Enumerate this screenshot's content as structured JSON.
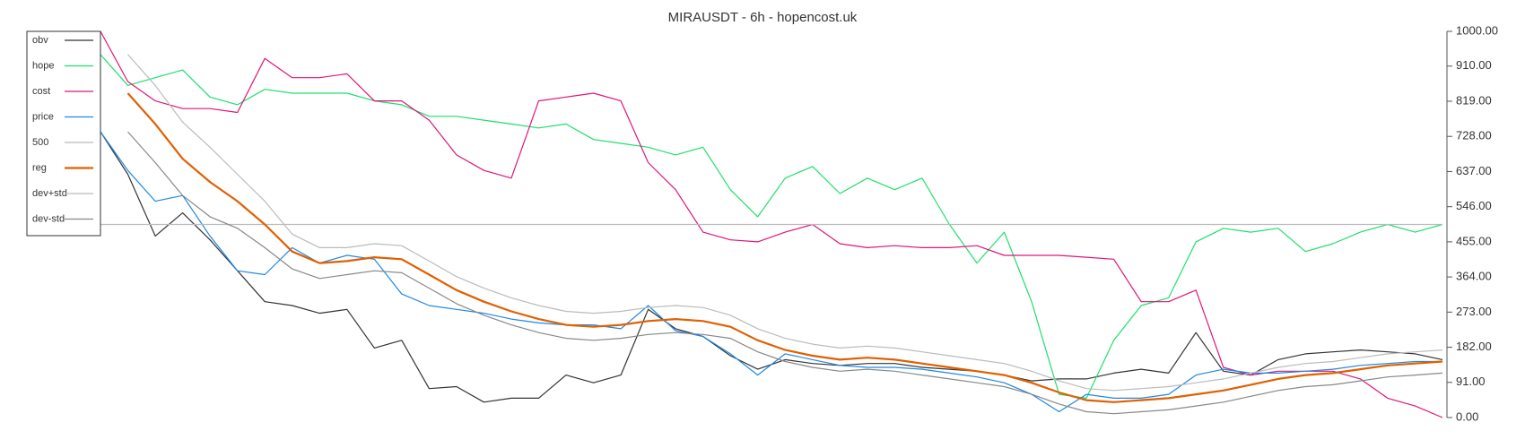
{
  "chart_data": {
    "type": "line",
    "title": "MIRAUSDT - 6h - hopencost.uk",
    "categories": [
      null,
      null,
      null,
      null,
      null,
      null,
      null,
      null,
      null,
      null,
      null,
      null,
      null,
      null,
      null,
      null,
      null,
      null,
      null,
      null,
      null,
      null,
      null,
      null,
      null,
      null,
      null,
      null,
      null,
      null,
      null,
      null,
      null,
      null,
      null,
      null,
      null,
      null,
      null,
      null,
      null,
      null,
      null,
      null,
      null,
      null,
      null,
      null,
      null,
      null
    ],
    "ylim": [
      0,
      1000
    ],
    "yticks": [
      {
        "value": 0,
        "label": "0.00"
      },
      {
        "value": 91,
        "label": "91.00"
      },
      {
        "value": 182,
        "label": "182.00"
      },
      {
        "value": 273,
        "label": "273.00"
      },
      {
        "value": 364,
        "label": "364.00"
      },
      {
        "value": 455,
        "label": "455.00"
      },
      {
        "value": 546,
        "label": "546.00"
      },
      {
        "value": 637,
        "label": "637.00"
      },
      {
        "value": 728,
        "label": "728.00"
      },
      {
        "value": 819,
        "label": "819.00"
      },
      {
        "value": 910,
        "label": "910.00"
      },
      {
        "value": 1000,
        "label": "1000.00"
      }
    ],
    "legend": "top-left",
    "series": [
      {
        "name": "obv",
        "color": "#333333",
        "values": [
          740,
          630,
          470,
          530,
          460,
          380,
          300,
          290,
          270,
          280,
          180,
          200,
          75,
          80,
          40,
          50,
          50,
          110,
          90,
          110,
          280,
          230,
          210,
          160,
          125,
          150,
          140,
          135,
          140,
          140,
          130,
          125,
          120,
          110,
          95,
          100,
          100,
          115,
          125,
          115,
          220,
          120,
          110,
          150,
          165,
          170,
          175,
          170,
          165,
          150
        ]
      },
      {
        "name": "hope",
        "color": "#1ee06a",
        "values": [
          940,
          860,
          880,
          900,
          830,
          810,
          850,
          840,
          840,
          840,
          820,
          810,
          780,
          780,
          770,
          760,
          750,
          760,
          720,
          710,
          700,
          680,
          700,
          590,
          520,
          620,
          650,
          580,
          620,
          590,
          620,
          500,
          400,
          480,
          300,
          60,
          50,
          200,
          290,
          310,
          455,
          490,
          480,
          490,
          430,
          450,
          480,
          500,
          480,
          500
        ]
      },
      {
        "name": "cost",
        "color": "#e0157a",
        "values": [
          1000,
          870,
          820,
          800,
          800,
          790,
          930,
          880,
          880,
          890,
          820,
          820,
          770,
          680,
          640,
          620,
          820,
          830,
          840,
          820,
          660,
          590,
          480,
          460,
          455,
          480,
          500,
          450,
          440,
          445,
          440,
          440,
          445,
          420,
          420,
          420,
          415,
          410,
          300,
          300,
          330,
          130,
          110,
          120,
          120,
          120,
          100,
          50,
          30,
          0
        ]
      },
      {
        "name": "price",
        "color": "#1e88e5",
        "values": [
          740,
          640,
          560,
          575,
          470,
          380,
          370,
          440,
          400,
          420,
          410,
          320,
          290,
          280,
          270,
          255,
          245,
          240,
          240,
          230,
          290,
          225,
          210,
          165,
          110,
          165,
          150,
          135,
          130,
          130,
          125,
          115,
          105,
          90,
          60,
          15,
          60,
          50,
          50,
          60,
          110,
          125,
          115,
          115,
          120,
          125,
          135,
          140,
          145,
          145
        ]
      },
      {
        "name": "500",
        "color": "#bbbbbb",
        "values": [
          500,
          500,
          500,
          500,
          500,
          500,
          500,
          500,
          500,
          500,
          500,
          500,
          500,
          500,
          500,
          500,
          500,
          500,
          500,
          500,
          500,
          500,
          500,
          500,
          500,
          500,
          500,
          500,
          500,
          500,
          500,
          500,
          500,
          500,
          500,
          500,
          500,
          500,
          500,
          500,
          500,
          500,
          500,
          500,
          500,
          500,
          500,
          500,
          500,
          500
        ]
      },
      {
        "name": "reg",
        "color": "#e06000",
        "values": [
          null,
          840,
          760,
          670,
          610,
          560,
          500,
          430,
          400,
          405,
          415,
          410,
          370,
          330,
          300,
          275,
          255,
          240,
          235,
          240,
          250,
          255,
          250,
          235,
          200,
          175,
          160,
          150,
          155,
          150,
          140,
          130,
          120,
          110,
          90,
          65,
          45,
          40,
          45,
          50,
          60,
          70,
          85,
          100,
          110,
          115,
          125,
          135,
          140,
          145
        ]
      },
      {
        "name": "dev+std",
        "color": "#bbbbbb",
        "values": [
          null,
          940,
          860,
          765,
          700,
          630,
          560,
          475,
          440,
          440,
          450,
          445,
          405,
          365,
          335,
          310,
          290,
          275,
          270,
          275,
          285,
          290,
          285,
          265,
          230,
          205,
          190,
          180,
          185,
          180,
          170,
          160,
          150,
          140,
          120,
          95,
          75,
          70,
          75,
          80,
          90,
          100,
          115,
          130,
          140,
          145,
          155,
          165,
          170,
          175
        ]
      },
      {
        "name": "dev-std",
        "color": "#888888",
        "values": [
          null,
          740,
          660,
          575,
          520,
          490,
          440,
          385,
          360,
          370,
          380,
          375,
          335,
          295,
          265,
          240,
          220,
          205,
          200,
          205,
          215,
          220,
          215,
          205,
          170,
          145,
          130,
          120,
          125,
          120,
          110,
          100,
          90,
          80,
          60,
          35,
          15,
          10,
          15,
          20,
          30,
          40,
          55,
          70,
          80,
          85,
          95,
          105,
          110,
          115
        ]
      }
    ]
  }
}
